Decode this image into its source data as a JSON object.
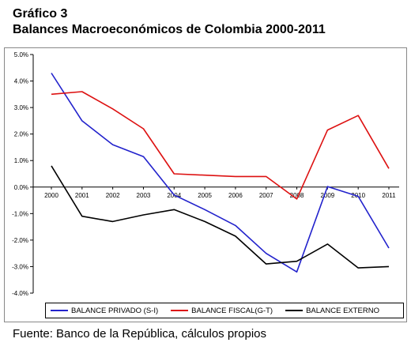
{
  "title": "Gráfico 3",
  "subtitle": "Balances Macroeconómicos de Colombia 2000-2011",
  "source": "Fuente: Banco de la República, cálculos propios",
  "chart_data": {
    "type": "line",
    "x": [
      "2000",
      "2001",
      "2002",
      "2003",
      "2004",
      "2005",
      "2006",
      "2007",
      "2008",
      "2009",
      "2010",
      "2011"
    ],
    "ylim": [
      -4.0,
      5.0
    ],
    "yticks": [
      5.0,
      4.0,
      3.0,
      2.0,
      1.0,
      0.0,
      -1.0,
      -2.0,
      -3.0,
      -4.0
    ],
    "ytick_labels": [
      "5.0%",
      "4.0%",
      "3.0%",
      "2.0%",
      "1.0%",
      "0.0%",
      "-1.0%",
      "-2.0%",
      "-3.0%",
      "-4.0%"
    ],
    "grid": false,
    "legend_position": "bottom",
    "series": [
      {
        "name": "BALANCE PRIVADO (S-I)",
        "color": "#2222cc",
        "values": [
          4.3,
          2.5,
          1.6,
          1.15,
          -0.3,
          -0.85,
          -1.45,
          -2.5,
          -3.2,
          0.02,
          -0.35,
          -2.3
        ]
      },
      {
        "name": "BALANCE FISCAL(G-T)",
        "color": "#dd1111",
        "values": [
          3.5,
          3.6,
          2.95,
          2.2,
          0.5,
          0.45,
          0.4,
          0.4,
          -0.45,
          2.15,
          2.7,
          0.7
        ]
      },
      {
        "name": "BALANCE EXTERNO",
        "color": "#000000",
        "values": [
          0.8,
          -1.1,
          -1.3,
          -1.05,
          -0.85,
          -1.3,
          -1.85,
          -2.9,
          -2.8,
          -2.15,
          -3.05,
          -3.0
        ]
      }
    ]
  }
}
